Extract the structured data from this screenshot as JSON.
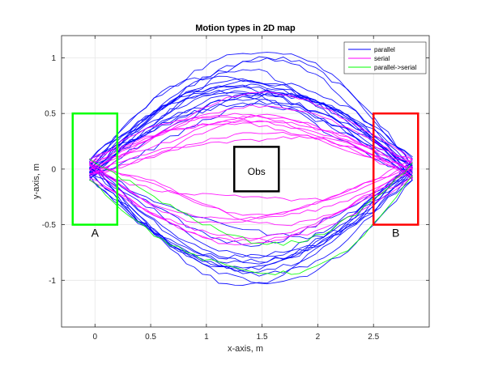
{
  "chart_data": {
    "type": "line",
    "title": "Motion types in 2D map",
    "xlabel": "x-axis, m",
    "ylabel": "y-axis, m",
    "xlim": [
      -0.3,
      3.0
    ],
    "ylim": [
      -1.42,
      1.2
    ],
    "xticks": [
      0,
      0.5,
      1,
      1.5,
      2,
      2.5
    ],
    "xtick_labels": [
      "0",
      "0.5",
      "1",
      "1.5",
      "2",
      "2.5"
    ],
    "yticks": [
      -1,
      -0.5,
      0,
      0.5,
      1
    ],
    "ytick_labels": [
      "-1",
      "-0.5",
      "0",
      "0.5",
      "1"
    ],
    "grid": true,
    "legend_position": "top-right",
    "series": [
      {
        "name": "parallel",
        "color": "#0000ff"
      },
      {
        "name": "serial",
        "color": "#ff00ff"
      },
      {
        "name": "parallel->serial",
        "color": "#00ff00"
      }
    ],
    "rectangles": [
      {
        "label": "A",
        "color": "#00ff00",
        "x0": -0.2,
        "x1": 0.2,
        "y0": -0.5,
        "y1": 0.5
      },
      {
        "label": "B",
        "color": "#ff0000",
        "x0": 2.5,
        "x1": 2.9,
        "y0": -0.5,
        "y1": 0.5
      },
      {
        "label": "Obs",
        "color": "#000000",
        "x0": 1.25,
        "x1": 1.65,
        "y0": -0.2,
        "y1": 0.2
      }
    ],
    "label_positions": {
      "A": [
        0.0,
        -0.61
      ],
      "B": [
        2.7,
        -0.61
      ],
      "Obs": [
        1.45,
        -0.05
      ]
    }
  }
}
